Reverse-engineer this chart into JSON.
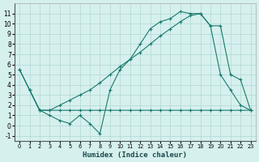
{
  "line1_x": [
    0,
    1,
    2,
    3,
    4,
    5,
    6,
    7,
    8,
    9,
    10,
    11,
    12,
    13,
    14,
    15,
    16,
    17,
    18,
    19,
    20,
    21,
    22,
    23
  ],
  "line1_y": [
    5.5,
    3.5,
    1.5,
    1.0,
    0.5,
    0.2,
    1.0,
    0.2,
    -0.8,
    3.5,
    5.5,
    6.5,
    8.0,
    9.5,
    10.2,
    10.5,
    11.2,
    11.0,
    11.0,
    9.8,
    5.0,
    3.5,
    2.0,
    1.5
  ],
  "line2_x": [
    0,
    2,
    3,
    4,
    5,
    6,
    7,
    8,
    9,
    10,
    11,
    12,
    13,
    14,
    15,
    16,
    17,
    18,
    19,
    20,
    21,
    22,
    23
  ],
  "line2_y": [
    5.5,
    1.5,
    1.5,
    2.0,
    2.5,
    3.0,
    3.5,
    4.2,
    5.0,
    5.8,
    6.5,
    7.2,
    8.0,
    8.8,
    9.5,
    10.2,
    10.8,
    11.0,
    9.8,
    9.8,
    5.0,
    4.5,
    1.5
  ],
  "line3_x": [
    1,
    2,
    3,
    4,
    5,
    6,
    7,
    8,
    9,
    10,
    11,
    12,
    13,
    14,
    15,
    16,
    17,
    18,
    19,
    20,
    21,
    22,
    23
  ],
  "line3_y": [
    3.5,
    1.5,
    1.5,
    1.5,
    1.5,
    1.5,
    1.5,
    1.5,
    1.5,
    1.5,
    1.5,
    1.5,
    1.5,
    1.5,
    1.5,
    1.5,
    1.5,
    1.5,
    1.5,
    1.5,
    1.5,
    1.5,
    1.5
  ],
  "color": "#1a7a6e",
  "bg_color": "#d6f0ee",
  "grid_color": "#b0d8d4",
  "xlabel": "Humidex (Indice chaleur)",
  "xlim": [
    -0.5,
    23.5
  ],
  "ylim": [
    -1.5,
    12
  ],
  "xticks": [
    0,
    1,
    2,
    3,
    4,
    5,
    6,
    7,
    8,
    9,
    10,
    11,
    12,
    13,
    14,
    15,
    16,
    17,
    18,
    19,
    20,
    21,
    22,
    23
  ],
  "yticks": [
    -1,
    0,
    1,
    2,
    3,
    4,
    5,
    6,
    7,
    8,
    9,
    10,
    11
  ]
}
